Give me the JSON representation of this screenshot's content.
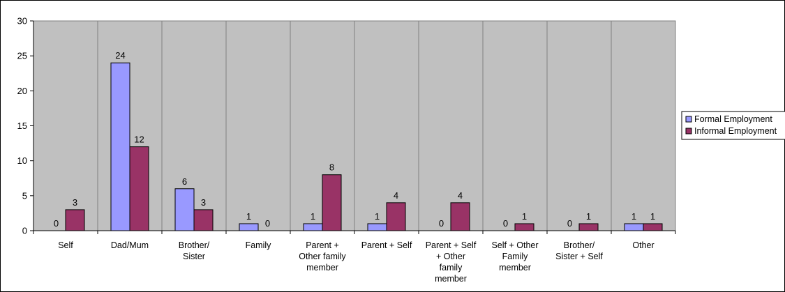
{
  "chart_data": {
    "type": "bar",
    "categories": [
      [
        "Self"
      ],
      [
        "Dad/Mum"
      ],
      [
        "Brother/",
        "Sister"
      ],
      [
        "Family"
      ],
      [
        "Parent +",
        "Other family",
        "member"
      ],
      [
        "Parent + Self"
      ],
      [
        "Parent + Self",
        "+ Other",
        "family",
        "member"
      ],
      [
        "Self + Other",
        "Family",
        "member"
      ],
      [
        "Brother/",
        "Sister + Self"
      ],
      [
        "Other"
      ]
    ],
    "series": [
      {
        "name": "Formal Employment",
        "color": "#9999ff",
        "values": [
          0,
          24,
          6,
          1,
          1,
          1,
          0,
          0,
          0,
          1
        ]
      },
      {
        "name": "Informal Employment",
        "color": "#993366",
        "values": [
          3,
          12,
          3,
          0,
          8,
          4,
          4,
          1,
          1,
          1
        ]
      }
    ],
    "ylim": [
      0,
      30
    ],
    "yticks": [
      0,
      5,
      10,
      15,
      20,
      25,
      30
    ],
    "plot_background": "#c0c0c0",
    "legend": "right",
    "grid": false,
    "title": "",
    "xlabel": "",
    "ylabel": ""
  }
}
